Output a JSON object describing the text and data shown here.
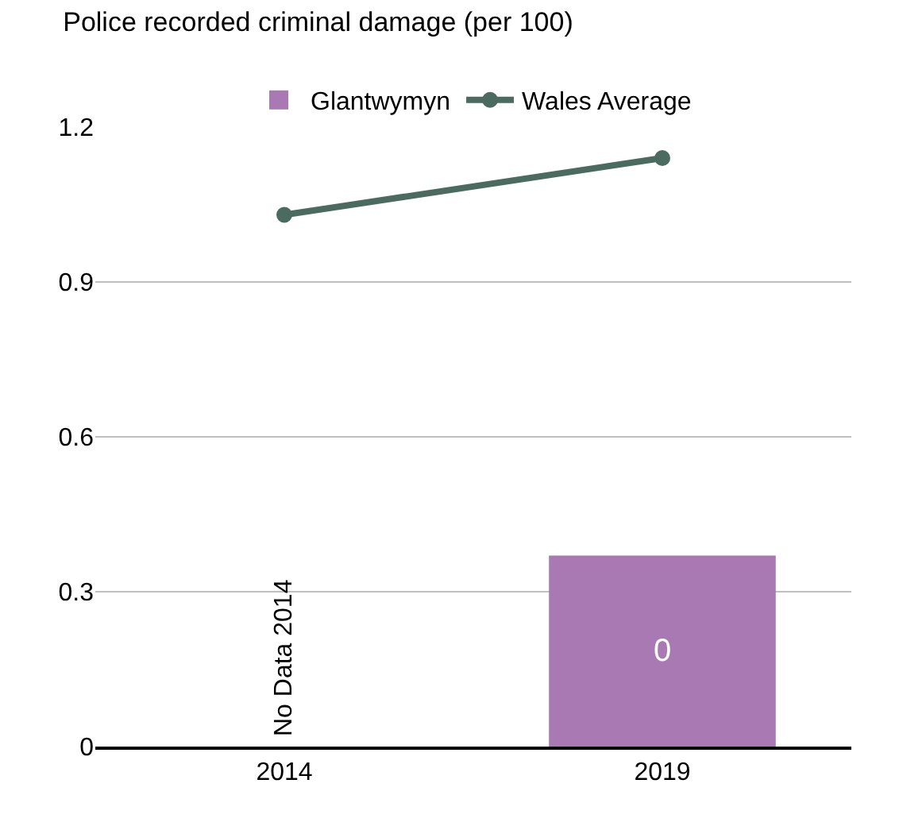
{
  "chart_data": {
    "type": "bar",
    "title": "Police recorded criminal damage (per 100)",
    "categories": [
      "2014",
      "2019"
    ],
    "series": [
      {
        "name": "Glantwymyn",
        "color": "#a979b4",
        "values": [
          null,
          0.37
        ],
        "value_labels": [
          "No Data 2014",
          "0"
        ]
      },
      {
        "name": "Wales Average",
        "type": "line",
        "color": "#4b6b60",
        "values": [
          1.03,
          1.14
        ],
        "marker": "circle"
      }
    ],
    "ylim": [
      0,
      1.2
    ],
    "yticks": [
      {
        "value": 0,
        "label": "0"
      },
      0.3,
      0.6,
      0.9,
      1.2
    ],
    "grid": "y",
    "legend": "top"
  }
}
